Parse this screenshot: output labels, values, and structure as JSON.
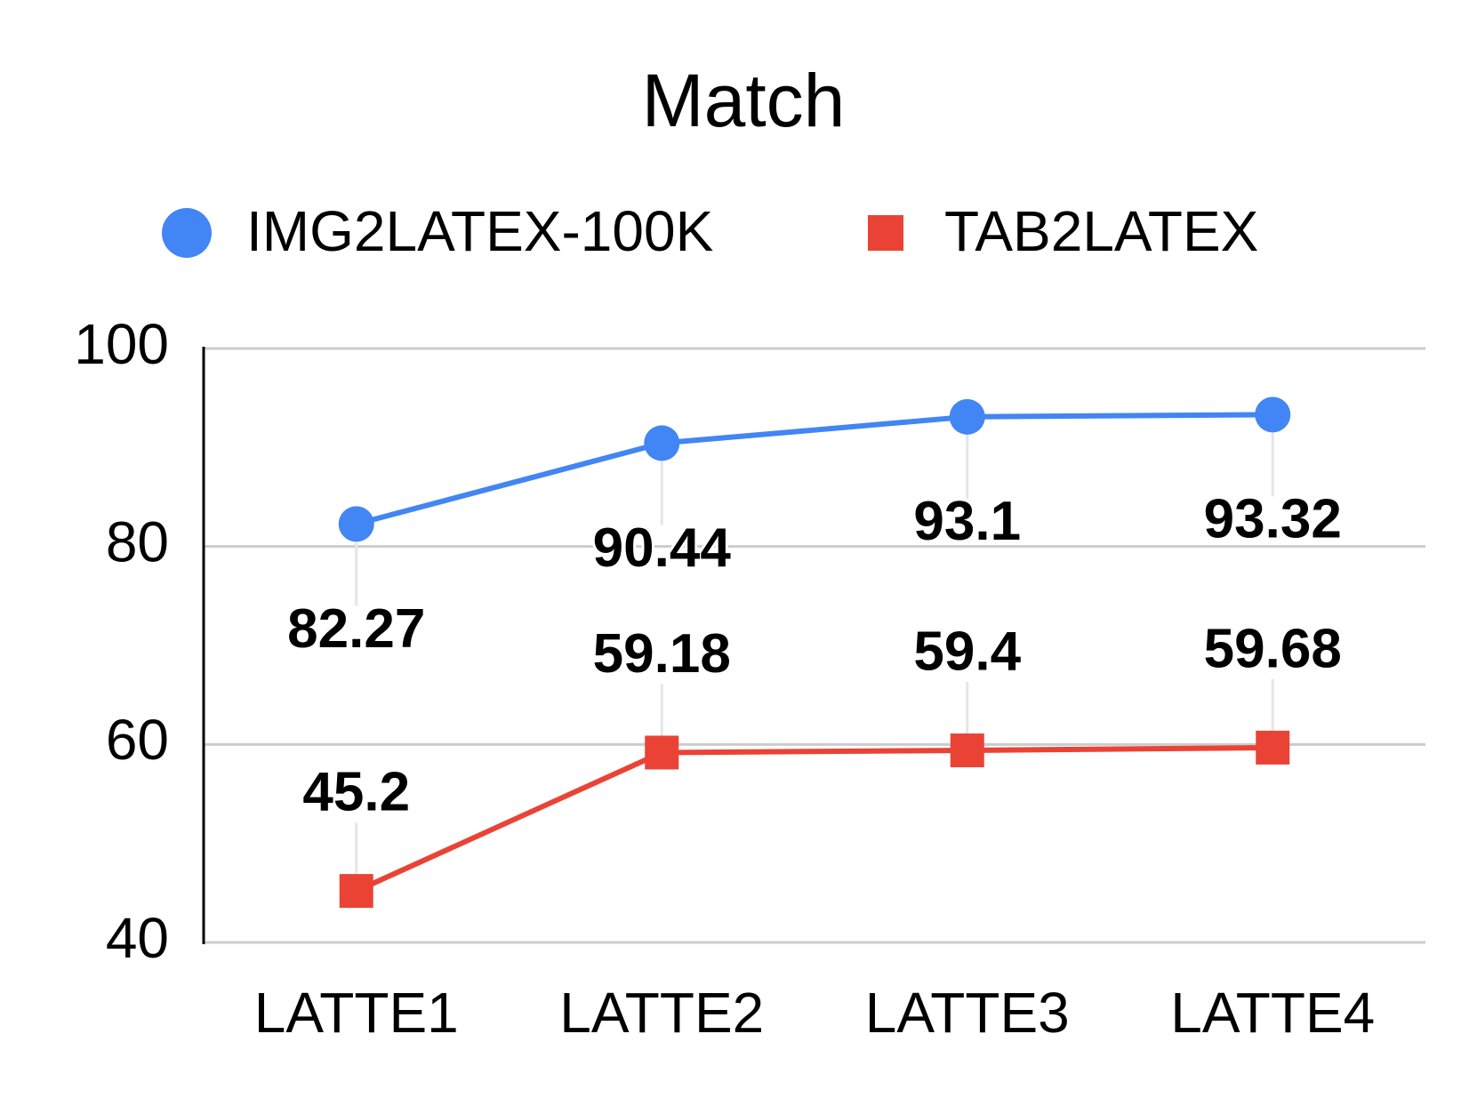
{
  "chart_data": {
    "type": "line",
    "title": "Match",
    "categories": [
      "LATTE1",
      "LATTE2",
      "LATTE3",
      "LATTE4"
    ],
    "series": [
      {
        "name": "IMG2LATEX-100K",
        "color": "#4285f4",
        "marker": "circle",
        "values": [
          82.27,
          90.44,
          93.1,
          93.32
        ]
      },
      {
        "name": "TAB2LATEX",
        "color": "#ea4335",
        "marker": "square",
        "values": [
          45.2,
          59.18,
          59.4,
          59.68
        ]
      }
    ],
    "ylim": [
      40,
      100
    ],
    "yticks": [
      40,
      60,
      80,
      100
    ],
    "grid": true,
    "legend": "top"
  }
}
